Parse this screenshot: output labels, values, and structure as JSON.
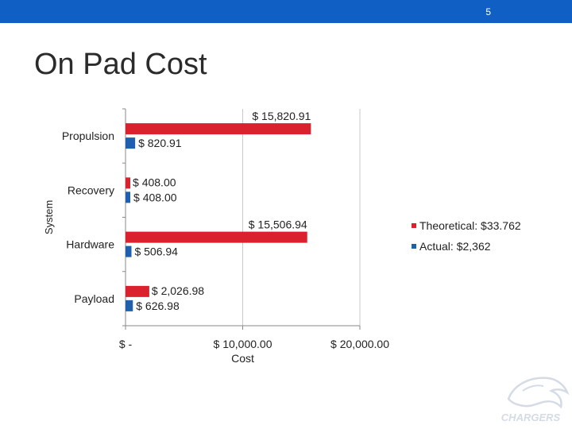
{
  "header": {
    "slide_number": "5"
  },
  "title": "On Pad Cost",
  "chart_data": {
    "type": "bar",
    "orientation": "horizontal",
    "categories": [
      "Propulsion",
      "Recovery",
      "Hardware",
      "Payload"
    ],
    "series": [
      {
        "name": "Theoretical: $33.762",
        "color": "#d9222e",
        "values": [
          15820.91,
          408.0,
          15506.94,
          2026.98
        ],
        "labels": [
          "$ 15,820.91",
          "$ 408.00",
          "$ 15,506.94",
          "$ 2,026.98"
        ]
      },
      {
        "name": "Actual: $2,362",
        "color": "#1f5fb0",
        "values": [
          820.91,
          408.0,
          506.94,
          626.98
        ],
        "labels": [
          "$ 820.91",
          "$ 408.00",
          "$ 506.94",
          "$ 626.98"
        ]
      }
    ],
    "xlabel": "Cost",
    "ylabel": "System",
    "xlim": [
      0,
      20000
    ],
    "xticks": [
      0,
      10000,
      20000
    ],
    "xtick_labels": [
      "$ -",
      "$ 10,000.00",
      "$ 20,000.00"
    ],
    "grid": true,
    "legend": "right"
  },
  "logo": {
    "text": "CHARGERS",
    "icon": "charger-horse-logo"
  },
  "colors": {
    "header_bar": "#0f5fc4",
    "theoretical": "#d9222e",
    "actual": "#1f5fb0"
  }
}
